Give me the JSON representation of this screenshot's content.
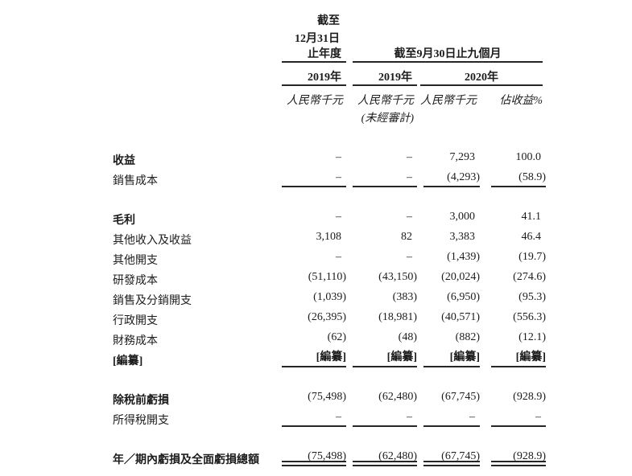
{
  "colors": {
    "background": "#ffffff",
    "text": "#1c1c1c",
    "rule": "#262626"
  },
  "table": {
    "header": {
      "fy_period_lines": [
        "截至",
        "12月31日",
        "止年度"
      ],
      "nine_month_period": "截至9月30日止九個月",
      "years": [
        "2019年",
        "2019年",
        "2020年"
      ],
      "units": [
        "人民幣千元",
        "人民幣千元",
        "人民幣千元",
        "佔收益%"
      ],
      "unaudited_note": "(未經審計)"
    },
    "rows": [
      {
        "label": "收益",
        "bold": true,
        "values": [
          "–",
          "–",
          "7,293",
          "100.0"
        ]
      },
      {
        "label": "銷售成本",
        "bold": false,
        "values": [
          "–",
          "–",
          "(4,293)",
          "(58.9)"
        ],
        "rule": "single",
        "gap_after": true
      },
      {
        "label": "毛利",
        "bold": true,
        "values": [
          "–",
          "–",
          "3,000",
          "41.1"
        ]
      },
      {
        "label": "其他收入及收益",
        "bold": false,
        "values": [
          "3,108",
          "82",
          "3,383",
          "46.4"
        ]
      },
      {
        "label": "其他開支",
        "bold": false,
        "values": [
          "–",
          "–",
          "(1,439)",
          "(19.7)"
        ]
      },
      {
        "label": "研發成本",
        "bold": false,
        "values": [
          "(51,110)",
          "(43,150)",
          "(20,024)",
          "(274.6)"
        ]
      },
      {
        "label": "銷售及分銷開支",
        "bold": false,
        "values": [
          "(1,039)",
          "(383)",
          "(6,950)",
          "(95.3)"
        ]
      },
      {
        "label": "行政開支",
        "bold": false,
        "values": [
          "(26,395)",
          "(18,981)",
          "(40,571)",
          "(556.3)"
        ]
      },
      {
        "label": "財務成本",
        "bold": false,
        "values": [
          "(62)",
          "(48)",
          "(882)",
          "(12.1)"
        ]
      },
      {
        "label": "[編纂]",
        "bold": true,
        "values_bold": true,
        "values": [
          "[編纂]",
          "[編纂]",
          "[編纂]",
          "[編纂]"
        ],
        "rule": "single",
        "gap_after": true
      },
      {
        "label": "除稅前虧損",
        "bold": true,
        "values": [
          "(75,498)",
          "(62,480)",
          "(67,745)",
          "(928.9)"
        ]
      },
      {
        "label": "所得稅開支",
        "bold": false,
        "values": [
          "–",
          "–",
          "–",
          "–"
        ],
        "rule": "single",
        "gap_after": true
      },
      {
        "label": "年／期內虧損及全面虧損總額",
        "bold": true,
        "values": [
          "(75,498)",
          "(62,480)",
          "(67,745)",
          "(928.9)"
        ],
        "rule": "double"
      }
    ]
  }
}
